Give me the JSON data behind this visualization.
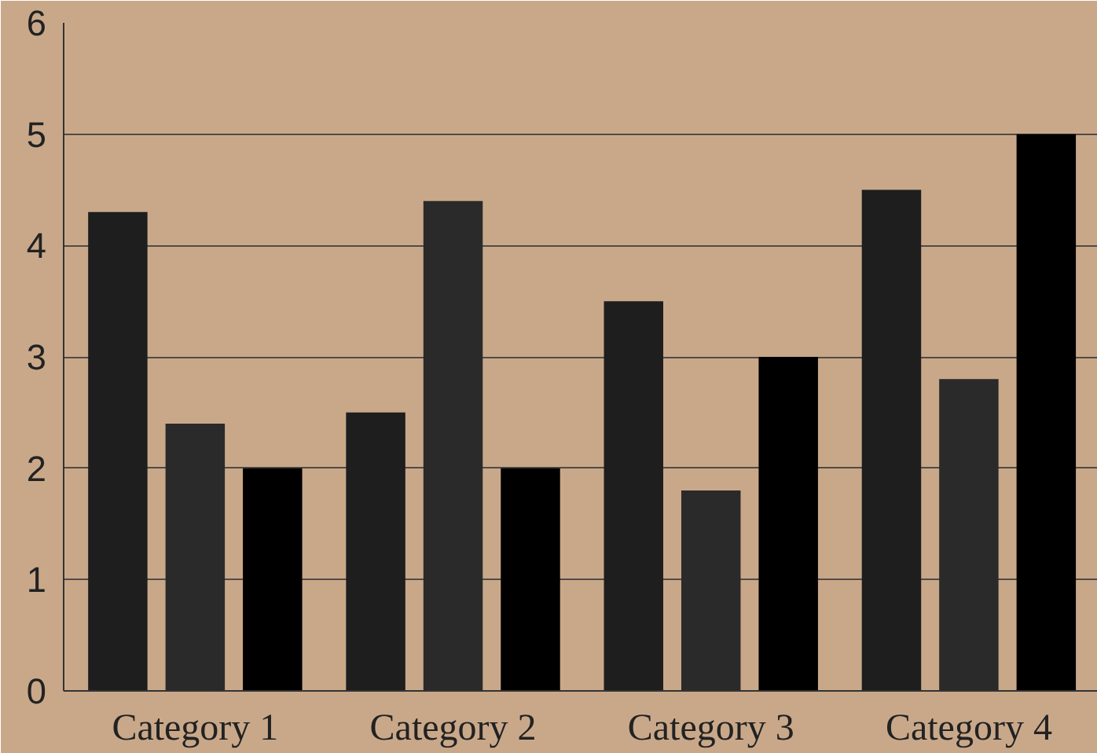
{
  "chart_data": {
    "type": "bar",
    "categories": [
      "Category 1",
      "Category 2",
      "Category 3",
      "Category 4"
    ],
    "series": [
      {
        "color": "#1e1e1e",
        "values": [
          4.3,
          2.5,
          3.5,
          4.5
        ]
      },
      {
        "color": "#2a2a2a",
        "values": [
          2.4,
          4.4,
          1.8,
          2.8
        ]
      },
      {
        "color": "#000000",
        "values": [
          2,
          2,
          3,
          5
        ]
      }
    ],
    "ylim": [
      0,
      6
    ],
    "yticks": [
      0,
      1,
      2,
      3,
      4,
      5,
      6
    ],
    "grid": "y"
  }
}
